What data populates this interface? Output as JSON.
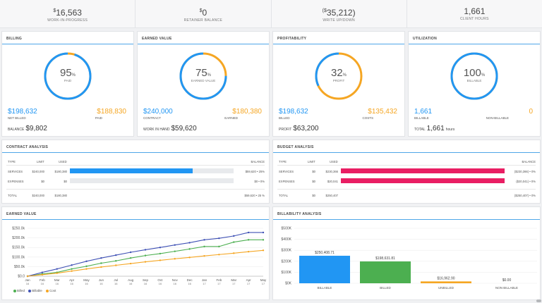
{
  "kpis": [
    {
      "val": "16,563",
      "pre": "$",
      "label": "WORK-IN-PROGRESS"
    },
    {
      "val": "0",
      "pre": "$",
      "label": "RETAINER BALANCE"
    },
    {
      "val": "35,212)",
      "pre": "($",
      "label": "WRITE UP/DOWN"
    },
    {
      "val": "1,661",
      "pre": "",
      "label": "CLIENT HOURS"
    }
  ],
  "billing": {
    "title": "BILLING",
    "pct": "95",
    "pct_sign": "%",
    "label": "PAID",
    "left_val": "$198,632",
    "left_lbl": "NET BILLED",
    "right_val": "$188,830",
    "right_lbl": "PAID",
    "foot_lbl": "BALANCE",
    "foot_val": "$9,802"
  },
  "earned": {
    "title": "EARNED VALUE",
    "pct": "75",
    "pct_sign": "%",
    "label": "EARNED VALUE",
    "left_val": "$240,000",
    "left_lbl": "CONTRACT",
    "right_val": "$180,380",
    "right_lbl": "EARNED",
    "foot_lbl": "WORK IN HAND",
    "foot_val": "$59,620"
  },
  "profit": {
    "title": "PROFITABILITY",
    "pct": "32",
    "pct_sign": "%",
    "label": "PROFIT",
    "left_val": "$198,632",
    "left_lbl": "BILLED",
    "right_val": "$135,432",
    "right_lbl": "COSTS",
    "foot_lbl": "PROFIT",
    "foot_val": "$63,200"
  },
  "util": {
    "title": "UTILIZATION",
    "pct": "100",
    "pct_sign": "%",
    "label": "BILLABLE",
    "left_val": "1,661",
    "left_lbl": "BILLABLE",
    "right_val": "0",
    "right_lbl": "NON-BILLABLE",
    "foot_lbl": "TOTAL",
    "foot_val": "1,661",
    "foot_unit": "hours"
  },
  "contract": {
    "title": "CONTRACT ANALYSIS",
    "headers": [
      "TYPE",
      "LIMIT",
      "USED",
      "BALANCE"
    ],
    "rows": [
      {
        "type": "SERVICES",
        "limit": "$240,000",
        "used": "$180,380",
        "balance": "$59,620 • 25%",
        "fill": 0.75
      },
      {
        "type": "EXPENSES",
        "limit": "$0",
        "used": "$0",
        "balance": "$0 • 0%",
        "fill": 0
      }
    ],
    "total": {
      "type": "TOTAL",
      "limit": "$240,000",
      "used": "$180,380",
      "balance": "$59,620 • 25 %"
    }
  },
  "budget": {
    "title": "BUDGET ANALYSIS",
    "headers": [
      "TYPE",
      "LIMIT",
      "USED",
      "BALANCE"
    ],
    "rows": [
      {
        "type": "SERVICES",
        "limit": "$0",
        "used": "$230,366",
        "balance": "($230,366) • 0%",
        "fill": 1
      },
      {
        "type": "EXPENSES",
        "limit": "$0",
        "used": "$20,041",
        "balance": "($20,041) • 0%",
        "fill": 1
      }
    ],
    "total": {
      "type": "TOTAL",
      "limit": "$0",
      "used": "$250,407",
      "balance": "($250,407) • 0%"
    }
  },
  "ev_chart": {
    "title": "EARNED VALUE",
    "legend": [
      "Billed",
      "Billable",
      "Cost"
    ]
  },
  "bill_chart": {
    "title": "BILLABILITY ANALYSIS"
  },
  "colors": {
    "blue": "#2196f3",
    "orange": "#f5a623",
    "green": "#4caf50",
    "pink": "#e91e63",
    "navy": "#3f51b5"
  },
  "chart_data": [
    {
      "type": "line",
      "x": [
        "Jan 16",
        "Feb 16",
        "Mar 16",
        "Apr 16",
        "May 16",
        "Jun 16",
        "Jul 16",
        "Aug 16",
        "Sep 16",
        "Oct 16",
        "Nov 16",
        "Dec 16",
        "Jan 17",
        "Feb 17",
        "Mar 17",
        "Apr 17",
        "May 17"
      ],
      "x_top": [
        "Jan",
        "Feb",
        "Mar",
        "Apr",
        "May",
        "Jun",
        "Jul",
        "Aug",
        "Sep",
        "Oct",
        "Nov",
        "Dec",
        "Jan",
        "Feb",
        "Mar",
        "Apr",
        "May"
      ],
      "x_bot": [
        "16",
        "16",
        "16",
        "16",
        "16",
        "16",
        "16",
        "16",
        "16",
        "16",
        "16",
        "16",
        "17",
        "17",
        "17",
        "17",
        "17"
      ],
      "yticks": [
        "$0.0",
        "$50.0k",
        "$100.0k",
        "$150.0k",
        "$200.0k",
        "$250.0k"
      ],
      "ylim": [
        0,
        250
      ],
      "series": [
        {
          "name": "Billed",
          "color": "#4caf50",
          "values": [
            0,
            12,
            20,
            38,
            52,
            68,
            80,
            95,
            108,
            118,
            130,
            142,
            155,
            155,
            178,
            190,
            190
          ]
        },
        {
          "name": "Billable",
          "color": "#3f51b5",
          "values": [
            0,
            20,
            38,
            58,
            78,
            95,
            110,
            125,
            138,
            150,
            163,
            175,
            190,
            198,
            210,
            228,
            228
          ]
        },
        {
          "name": "Cost",
          "color": "#f5a623",
          "values": [
            0,
            8,
            16,
            27,
            38,
            48,
            57,
            66,
            75,
            83,
            91,
            98,
            106,
            113,
            120,
            128,
            135
          ]
        }
      ]
    },
    {
      "type": "bar",
      "categories": [
        "BILLABLE",
        "BILLED",
        "UNBILLED",
        "NON BILLABLE"
      ],
      "values": [
        250408.71,
        198631.81,
        16962.9,
        0
      ],
      "labels": [
        "$250,408.71",
        "$198,631.81",
        "$16,962.90",
        "$0.00"
      ],
      "colors": [
        "#2196f3",
        "#4caf50",
        "#f5a623",
        "#bbbbbb"
      ],
      "yticks": [
        "$0K",
        "$100K",
        "$200K",
        "$300K",
        "$400K",
        "$500K"
      ],
      "ylim": [
        0,
        500000
      ]
    }
  ]
}
